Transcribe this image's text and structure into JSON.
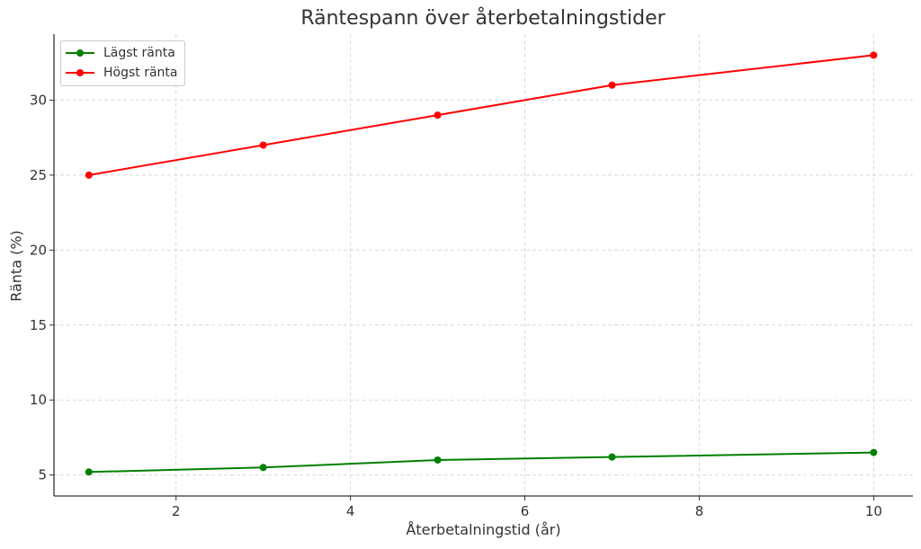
{
  "chart_data": {
    "type": "line",
    "title": "Räntespann över återbetalningstider",
    "xlabel": "Återbetalningstid (år)",
    "ylabel": "Ränta (%)",
    "x": [
      1,
      3,
      5,
      7,
      10
    ],
    "series": [
      {
        "name": "Lägst ränta",
        "color": "#008000",
        "values": [
          5.2,
          5.5,
          6.0,
          6.2,
          6.5
        ]
      },
      {
        "name": "Högst ränta",
        "color": "#ff0000",
        "values": [
          25,
          27,
          29,
          31,
          33
        ]
      }
    ],
    "xticks": [
      2,
      4,
      6,
      8,
      10
    ],
    "yticks": [
      5,
      10,
      15,
      20,
      25,
      30
    ],
    "xlim": [
      0.6,
      10.45
    ],
    "ylim": [
      3.6,
      34.4
    ],
    "grid": true,
    "legend_position": "upper left"
  }
}
